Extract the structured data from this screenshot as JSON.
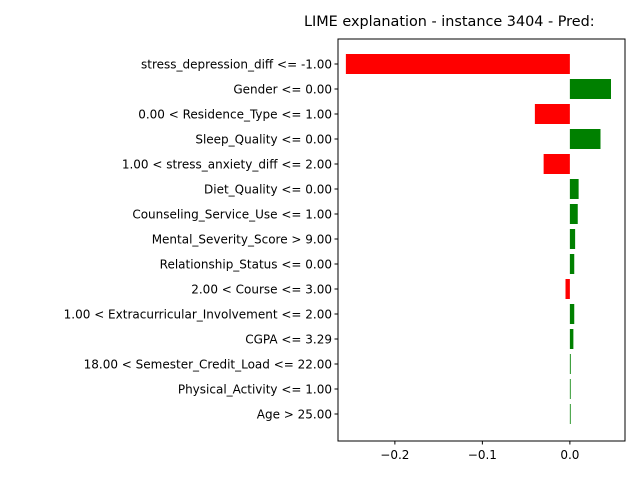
{
  "chart_data": {
    "type": "bar",
    "orientation": "horizontal",
    "title": "LIME explanation - instance 3404 - Pred:",
    "xlabel": "",
    "ylabel": "",
    "xlim": [
      -0.265,
      0.063
    ],
    "xticks": [
      {
        "value": -0.2,
        "label": "−0.2"
      },
      {
        "value": -0.1,
        "label": "−0.1"
      },
      {
        "value": 0.0,
        "label": "0.0"
      }
    ],
    "grid": false,
    "colors": {
      "positive": "#008000",
      "negative": "#ff0000"
    },
    "categories": [
      "stress_depression_diff <= -1.00",
      "Gender <= 0.00",
      "0.00 < Residence_Type <= 1.00",
      "Sleep_Quality <= 0.00",
      "1.00 < stress_anxiety_diff <= 2.00",
      "Diet_Quality <= 0.00",
      "Counseling_Service_Use <= 1.00",
      "Mental_Severity_Score > 9.00",
      "Relationship_Status <= 0.00",
      "2.00 < Course <= 3.00",
      "1.00 < Extracurricular_Involvement <= 2.00",
      "CGPA <= 3.29",
      "18.00 < Semester_Credit_Load <= 22.00",
      "Physical_Activity <= 1.00",
      "Age > 25.00"
    ],
    "values": [
      -0.256,
      0.047,
      -0.04,
      0.035,
      -0.03,
      0.01,
      0.009,
      0.006,
      0.005,
      -0.005,
      0.005,
      0.004,
      0.001,
      0.0008,
      0.0006
    ]
  }
}
